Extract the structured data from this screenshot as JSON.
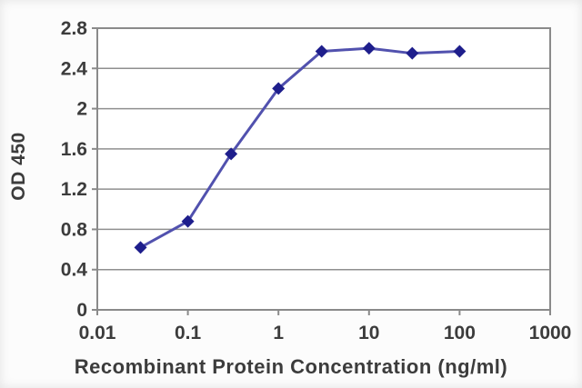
{
  "chart_data": {
    "type": "line",
    "title": "",
    "xlabel": "Recombinant Protein Concentration (ng/ml)",
    "ylabel": "OD 450",
    "x_scale": "log",
    "xlim": [
      0.01,
      1000
    ],
    "ylim": [
      0,
      2.8
    ],
    "x_ticks": [
      "0.01",
      "0.1",
      "1",
      "10",
      "100",
      "1000"
    ],
    "y_ticks": [
      "0",
      "0.4",
      "0.8",
      "1.2",
      "1.6",
      "2",
      "2.4",
      "2.8"
    ],
    "x": [
      0.03,
      0.1,
      0.3,
      1,
      3,
      10,
      30,
      100
    ],
    "y": [
      0.62,
      0.88,
      1.55,
      2.2,
      2.57,
      2.6,
      2.55,
      2.57
    ],
    "grid": "horizontal",
    "legend": "none",
    "marker": "diamond",
    "colors": {
      "line": "#5151ae",
      "marker": "#1e1e8c",
      "grid": "#8f8f8f",
      "axis": "#8a8a8a",
      "text": "#3c3c3c",
      "plot_bg": "#ffffff",
      "page_bg": "#fcfcfc"
    }
  }
}
